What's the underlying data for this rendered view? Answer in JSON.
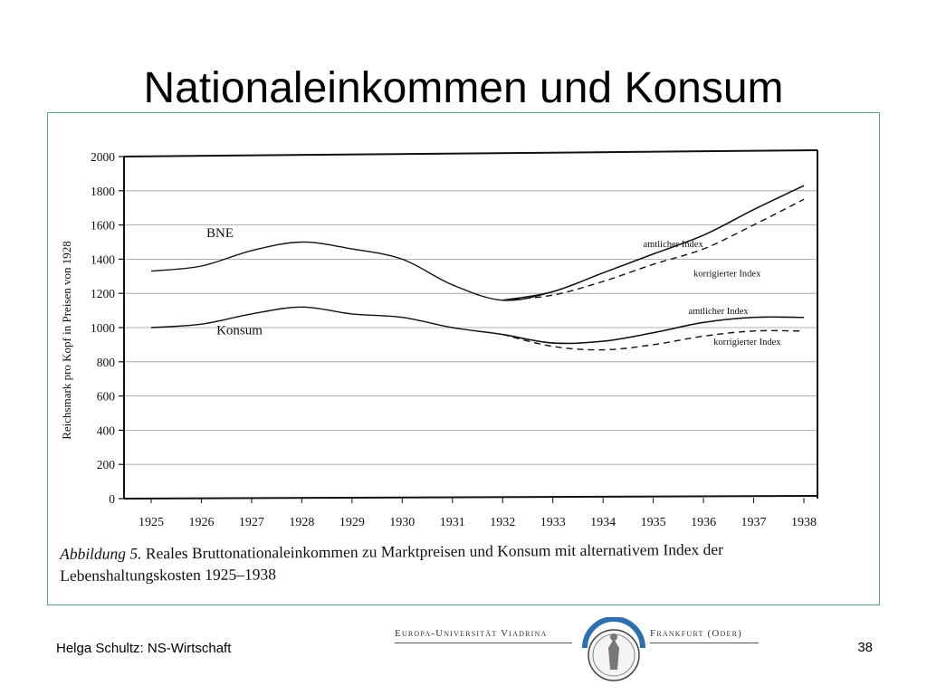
{
  "slide": {
    "title": "Nationaleinkommen und Konsum",
    "author": "Helga Schultz: NS-Wirtschaft",
    "page_number": "38"
  },
  "logo": {
    "left_text": "Europa-Universität Viadrina",
    "right_text": "Frankfurt (Oder)"
  },
  "caption": {
    "label": "Abbildung 5.",
    "text": "Reales Bruttonationaleinkommen zu Marktpreisen und Konsum mit alternativem Index der Lebenshaltungskosten 1925–1938"
  },
  "chart_data": {
    "type": "line",
    "ylabel": "Reichsmark pro Kopf in Preisen von 1928",
    "xlabel": "",
    "ylim": [
      0,
      2000
    ],
    "yticks": [
      0,
      200,
      400,
      600,
      800,
      1000,
      1200,
      1400,
      1600,
      1800,
      2000
    ],
    "grid": true,
    "categories": [
      "1925",
      "1926",
      "1927",
      "1928",
      "1929",
      "1930",
      "1931",
      "1932",
      "1933",
      "1934",
      "1935",
      "1936",
      "1937",
      "1938"
    ],
    "series": [
      {
        "name": "BNE",
        "group": "BNE",
        "style": "solid",
        "x": [
          1925,
          1926,
          1927,
          1928,
          1929,
          1930,
          1931,
          1932,
          1933,
          1934,
          1935,
          1936,
          1937,
          1938
        ],
        "values": [
          1330,
          1360,
          1450,
          1500,
          1460,
          1400,
          1250,
          1160,
          1210,
          1320,
          1430,
          1540,
          1690,
          1830
        ]
      },
      {
        "name": "amtlicher Index",
        "group": "BNE",
        "style": "solid",
        "x": [
          1932,
          1933,
          1934,
          1935,
          1936,
          1937,
          1938
        ],
        "values": [
          1160,
          1210,
          1320,
          1430,
          1540,
          1690,
          1830
        ]
      },
      {
        "name": "korrigierter Index",
        "group": "BNE",
        "style": "dashed",
        "x": [
          1932,
          1933,
          1934,
          1935,
          1936,
          1937,
          1938
        ],
        "values": [
          1160,
          1190,
          1270,
          1370,
          1460,
          1600,
          1750
        ]
      },
      {
        "name": "Konsum",
        "group": "Konsum",
        "style": "solid",
        "x": [
          1925,
          1926,
          1927,
          1928,
          1929,
          1930,
          1931,
          1932,
          1933,
          1934,
          1935,
          1936,
          1937,
          1938
        ],
        "values": [
          1000,
          1020,
          1080,
          1120,
          1080,
          1060,
          1000,
          960,
          910,
          920,
          970,
          1030,
          1060,
          1060
        ]
      },
      {
        "name": "amtlicher Index",
        "group": "Konsum",
        "style": "solid",
        "x": [
          1932,
          1933,
          1934,
          1935,
          1936,
          1937,
          1938
        ],
        "values": [
          960,
          910,
          920,
          970,
          1030,
          1060,
          1060
        ]
      },
      {
        "name": "korrigierter Index",
        "group": "Konsum",
        "style": "dashed",
        "x": [
          1932,
          1933,
          1934,
          1935,
          1936,
          1937,
          1938
        ],
        "values": [
          960,
          890,
          870,
          900,
          950,
          980,
          980
        ]
      }
    ],
    "annotations": [
      {
        "text": "BNE",
        "x": 1926.1,
        "y": 1530
      },
      {
        "text": "Konsum",
        "x": 1926.3,
        "y": 960
      },
      {
        "text": "amtlicher Index",
        "x": 1934.8,
        "y": 1470
      },
      {
        "text": "korrigierter Index",
        "x": 1935.8,
        "y": 1300
      },
      {
        "text": "amtlicher Index",
        "x": 1935.7,
        "y": 1080
      },
      {
        "text": "korrigierter Index",
        "x": 1936.2,
        "y": 900
      }
    ]
  }
}
